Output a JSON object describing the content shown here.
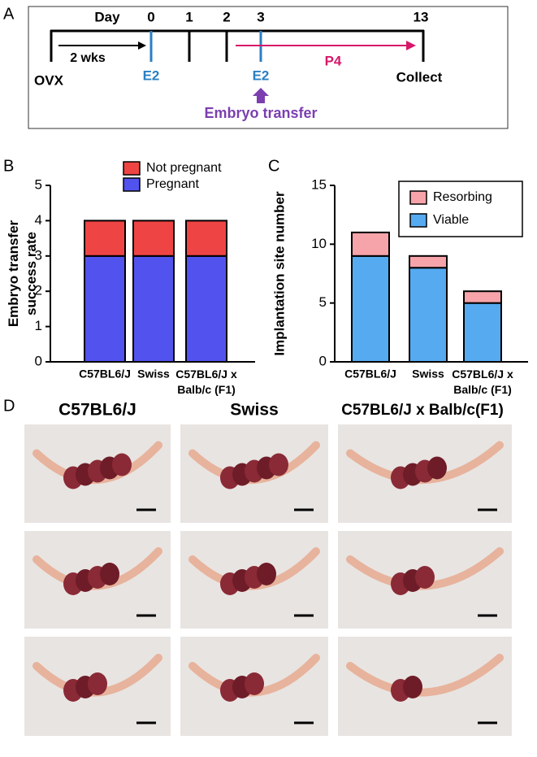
{
  "panel_labels": [
    "A",
    "B",
    "C",
    "D"
  ],
  "timeline": {
    "day_label": "Day",
    "days": [
      "0",
      "1",
      "2",
      "3",
      "13"
    ],
    "interval": "2 wks",
    "start": "OVX",
    "e2_first": "E2",
    "e2_second": "E2",
    "p4": "P4",
    "end": "Collect",
    "transfer": "Embryo transfer"
  },
  "chart_data": [
    {
      "type": "stacked-bar",
      "y_label": "Embryo transfer success rate",
      "categories": [
        "C57BL6/J",
        "Swiss",
        "C57BL6/J x Balb/c (F1)"
      ],
      "series": [
        {
          "name": "Pregnant",
          "color": "#5252ee",
          "values": [
            3,
            3,
            3
          ]
        },
        {
          "name": "Not pregnant",
          "color": "#ef4444",
          "values": [
            1,
            1,
            1
          ]
        }
      ],
      "ylim": [
        0,
        5
      ],
      "yticks": [
        0,
        1,
        2,
        3,
        4,
        5
      ],
      "legend": "upper-right"
    },
    {
      "type": "stacked-bar",
      "y_label": "Implantation site number",
      "categories": [
        "C57BL6/J",
        "Swiss",
        "C57BL6/J x Balb/c (F1)"
      ],
      "series": [
        {
          "name": "Viable",
          "color": "#55aaf0",
          "values": [
            9,
            8,
            5
          ]
        },
        {
          "name": "Resorbing",
          "color": "#f7a3aa",
          "values": [
            2,
            1,
            1
          ]
        }
      ],
      "ylim": [
        0,
        15
      ],
      "yticks": [
        0,
        5,
        10,
        15
      ],
      "legend": "upper-right"
    }
  ],
  "photos": {
    "headers": [
      "C57BL6/J",
      "Swiss",
      "C57BL6/J x Balb/c(F1)"
    ]
  }
}
